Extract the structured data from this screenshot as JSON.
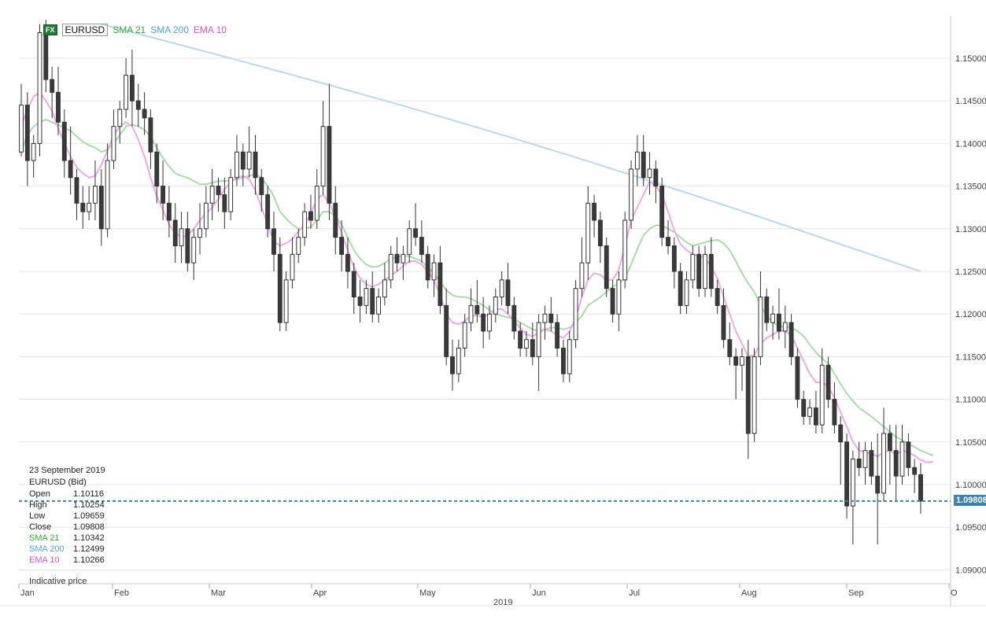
{
  "chart_data": {
    "type": "candlestick",
    "symbol": "EURUSD",
    "badge": "FX",
    "indicators": [
      {
        "name": "SMA 21",
        "color": "#3aa63a",
        "line_color": "#a8dca8"
      },
      {
        "name": "SMA 200",
        "color": "#4fa3d9",
        "line_color": "#b9d9ee"
      },
      {
        "name": "EMA 10",
        "color": "#e04fd0",
        "line_color": "#f0a8e8"
      }
    ],
    "y_ticks": [
      "1.15000",
      "1.14500",
      "1.14000",
      "1.13500",
      "1.13000",
      "1.12500",
      "1.12000",
      "1.11500",
      "1.11000",
      "1.10500",
      "1.10000",
      "1.09500",
      "1.09000"
    ],
    "ylim": [
      1.0865,
      1.1545
    ],
    "x_months": [
      "Jan",
      "Feb",
      "Mar",
      "Apr",
      "May",
      "Jun",
      "Jul",
      "Aug",
      "Sep",
      "O"
    ],
    "year_label": "2019",
    "last_price_label": "1.09808",
    "last_price": 1.09808,
    "candles": [
      [
        1.139,
        1.147,
        1.1385,
        1.1445
      ],
      [
        1.1445,
        1.146,
        1.135,
        1.138
      ],
      [
        1.138,
        1.141,
        1.136,
        1.14
      ],
      [
        1.14,
        1.154,
        1.1385,
        1.153
      ],
      [
        1.153,
        1.1545,
        1.146,
        1.1475
      ],
      [
        1.1475,
        1.149,
        1.143,
        1.146
      ],
      [
        1.146,
        1.149,
        1.141,
        1.1425
      ],
      [
        1.1425,
        1.144,
        1.136,
        1.138
      ],
      [
        1.138,
        1.142,
        1.134,
        1.136
      ],
      [
        1.136,
        1.137,
        1.131,
        1.133
      ],
      [
        1.133,
        1.135,
        1.13,
        1.132
      ],
      [
        1.132,
        1.135,
        1.131,
        1.133
      ],
      [
        1.133,
        1.138,
        1.131,
        1.135
      ],
      [
        1.135,
        1.137,
        1.128,
        1.13
      ],
      [
        1.13,
        1.14,
        1.129,
        1.138
      ],
      [
        1.138,
        1.144,
        1.137,
        1.142
      ],
      [
        1.142,
        1.145,
        1.14,
        1.144
      ],
      [
        1.144,
        1.15,
        1.143,
        1.148
      ],
      [
        1.148,
        1.151,
        1.142,
        1.145
      ],
      [
        1.145,
        1.147,
        1.142,
        1.144
      ],
      [
        1.144,
        1.146,
        1.141,
        1.143
      ],
      [
        1.143,
        1.144,
        1.137,
        1.139
      ],
      [
        1.139,
        1.14,
        1.133,
        1.135
      ],
      [
        1.135,
        1.138,
        1.131,
        1.133
      ],
      [
        1.133,
        1.135,
        1.129,
        1.131
      ],
      [
        1.131,
        1.133,
        1.126,
        1.128
      ],
      [
        1.128,
        1.132,
        1.126,
        1.13
      ],
      [
        1.13,
        1.132,
        1.125,
        1.126
      ],
      [
        1.126,
        1.13,
        1.124,
        1.129
      ],
      [
        1.129,
        1.133,
        1.127,
        1.13
      ],
      [
        1.13,
        1.135,
        1.129,
        1.133
      ],
      [
        1.133,
        1.137,
        1.131,
        1.135
      ],
      [
        1.135,
        1.136,
        1.132,
        1.134
      ],
      [
        1.134,
        1.136,
        1.13,
        1.132
      ],
      [
        1.132,
        1.137,
        1.131,
        1.136
      ],
      [
        1.136,
        1.141,
        1.135,
        1.139
      ],
      [
        1.139,
        1.14,
        1.135,
        1.137
      ],
      [
        1.137,
        1.142,
        1.136,
        1.139
      ],
      [
        1.139,
        1.141,
        1.134,
        1.136
      ],
      [
        1.136,
        1.137,
        1.132,
        1.134
      ],
      [
        1.134,
        1.135,
        1.129,
        1.13
      ],
      [
        1.13,
        1.132,
        1.125,
        1.127
      ],
      [
        1.127,
        1.129,
        1.118,
        1.119
      ],
      [
        1.119,
        1.125,
        1.118,
        1.124
      ],
      [
        1.124,
        1.129,
        1.123,
        1.127
      ],
      [
        1.127,
        1.13,
        1.126,
        1.129
      ],
      [
        1.129,
        1.133,
        1.128,
        1.132
      ],
      [
        1.132,
        1.134,
        1.13,
        1.131
      ],
      [
        1.131,
        1.137,
        1.13,
        1.135
      ],
      [
        1.135,
        1.145,
        1.134,
        1.142
      ],
      [
        1.142,
        1.147,
        1.131,
        1.133
      ],
      [
        1.133,
        1.135,
        1.127,
        1.129
      ],
      [
        1.129,
        1.131,
        1.125,
        1.127
      ],
      [
        1.127,
        1.129,
        1.123,
        1.125
      ],
      [
        1.125,
        1.126,
        1.12,
        1.122
      ],
      [
        1.122,
        1.124,
        1.119,
        1.121
      ],
      [
        1.121,
        1.124,
        1.12,
        1.123
      ],
      [
        1.123,
        1.125,
        1.119,
        1.12
      ],
      [
        1.12,
        1.123,
        1.119,
        1.122
      ],
      [
        1.122,
        1.126,
        1.121,
        1.124
      ],
      [
        1.124,
        1.128,
        1.123,
        1.127
      ],
      [
        1.127,
        1.129,
        1.125,
        1.126
      ],
      [
        1.126,
        1.128,
        1.124,
        1.127
      ],
      [
        1.127,
        1.131,
        1.126,
        1.13
      ],
      [
        1.13,
        1.133,
        1.128,
        1.129
      ],
      [
        1.129,
        1.131,
        1.126,
        1.127
      ],
      [
        1.127,
        1.128,
        1.123,
        1.124
      ],
      [
        1.124,
        1.127,
        1.122,
        1.126
      ],
      [
        1.126,
        1.128,
        1.12,
        1.121
      ],
      [
        1.121,
        1.123,
        1.114,
        1.115
      ],
      [
        1.115,
        1.117,
        1.111,
        1.113
      ],
      [
        1.113,
        1.117,
        1.112,
        1.116
      ],
      [
        1.116,
        1.12,
        1.115,
        1.119
      ],
      [
        1.119,
        1.123,
        1.118,
        1.121
      ],
      [
        1.121,
        1.124,
        1.119,
        1.12
      ],
      [
        1.12,
        1.122,
        1.116,
        1.118
      ],
      [
        1.118,
        1.121,
        1.117,
        1.12
      ],
      [
        1.12,
        1.123,
        1.119,
        1.122
      ],
      [
        1.122,
        1.125,
        1.121,
        1.124
      ],
      [
        1.124,
        1.126,
        1.12,
        1.121
      ],
      [
        1.121,
        1.122,
        1.117,
        1.118
      ],
      [
        1.118,
        1.119,
        1.115,
        1.116
      ],
      [
        1.116,
        1.118,
        1.115,
        1.117
      ],
      [
        1.117,
        1.119,
        1.114,
        1.115
      ],
      [
        1.115,
        1.12,
        1.111,
        1.119
      ],
      [
        1.119,
        1.121,
        1.117,
        1.12
      ],
      [
        1.12,
        1.122,
        1.118,
        1.119
      ],
      [
        1.119,
        1.12,
        1.115,
        1.116
      ],
      [
        1.116,
        1.117,
        1.112,
        1.113
      ],
      [
        1.113,
        1.118,
        1.112,
        1.117
      ],
      [
        1.117,
        1.124,
        1.116,
        1.123
      ],
      [
        1.123,
        1.129,
        1.122,
        1.126
      ],
      [
        1.126,
        1.135,
        1.124,
        1.133
      ],
      [
        1.133,
        1.134,
        1.129,
        1.131
      ],
      [
        1.131,
        1.132,
        1.126,
        1.128
      ],
      [
        1.128,
        1.129,
        1.122,
        1.123
      ],
      [
        1.123,
        1.124,
        1.119,
        1.12
      ],
      [
        1.12,
        1.125,
        1.118,
        1.124
      ],
      [
        1.124,
        1.132,
        1.123,
        1.131
      ],
      [
        1.131,
        1.138,
        1.13,
        1.137
      ],
      [
        1.137,
        1.141,
        1.135,
        1.139
      ],
      [
        1.139,
        1.141,
        1.135,
        1.136
      ],
      [
        1.136,
        1.139,
        1.134,
        1.137
      ],
      [
        1.137,
        1.138,
        1.133,
        1.135
      ],
      [
        1.135,
        1.136,
        1.128,
        1.129
      ],
      [
        1.129,
        1.131,
        1.127,
        1.128
      ],
      [
        1.128,
        1.129,
        1.123,
        1.125
      ],
      [
        1.125,
        1.126,
        1.12,
        1.121
      ],
      [
        1.121,
        1.125,
        1.12,
        1.124
      ],
      [
        1.124,
        1.128,
        1.123,
        1.127
      ],
      [
        1.127,
        1.128,
        1.122,
        1.123
      ],
      [
        1.123,
        1.128,
        1.122,
        1.127
      ],
      [
        1.127,
        1.129,
        1.122,
        1.123
      ],
      [
        1.123,
        1.124,
        1.12,
        1.121
      ],
      [
        1.121,
        1.123,
        1.116,
        1.117
      ],
      [
        1.117,
        1.119,
        1.114,
        1.115
      ],
      [
        1.115,
        1.116,
        1.11,
        1.114
      ],
      [
        1.114,
        1.116,
        1.111,
        1.115
      ],
      [
        1.115,
        1.117,
        1.103,
        1.106
      ],
      [
        1.106,
        1.116,
        1.105,
        1.115
      ],
      [
        1.115,
        1.125,
        1.114,
        1.122
      ],
      [
        1.122,
        1.123,
        1.118,
        1.119
      ],
      [
        1.119,
        1.121,
        1.117,
        1.12
      ],
      [
        1.12,
        1.123,
        1.117,
        1.118
      ],
      [
        1.118,
        1.121,
        1.116,
        1.119
      ],
      [
        1.119,
        1.12,
        1.114,
        1.115
      ],
      [
        1.115,
        1.116,
        1.109,
        1.11
      ],
      [
        1.11,
        1.111,
        1.107,
        1.108
      ],
      [
        1.108,
        1.11,
        1.107,
        1.109
      ],
      [
        1.109,
        1.111,
        1.106,
        1.107
      ],
      [
        1.107,
        1.116,
        1.106,
        1.114
      ],
      [
        1.114,
        1.115,
        1.109,
        1.11
      ],
      [
        1.11,
        1.112,
        1.106,
        1.107
      ],
      [
        1.107,
        1.108,
        1.1,
        1.105
      ],
      [
        1.105,
        1.106,
        1.096,
        1.0975
      ],
      [
        1.0975,
        1.104,
        1.093,
        1.103
      ],
      [
        1.103,
        1.105,
        1.101,
        1.102
      ],
      [
        1.102,
        1.105,
        1.1,
        1.104
      ],
      [
        1.104,
        1.105,
        1.1,
        1.101
      ],
      [
        1.101,
        1.106,
        1.093,
        1.099
      ],
      [
        1.099,
        1.109,
        1.098,
        1.106
      ],
      [
        1.106,
        1.107,
        1.1,
        1.104
      ],
      [
        1.104,
        1.107,
        1.098,
        1.101
      ],
      [
        1.101,
        1.107,
        1.1,
        1.105
      ],
      [
        1.105,
        1.106,
        1.101,
        1.102
      ],
      [
        1.102,
        1.103,
        1.099,
        1.1012
      ],
      [
        1.10116,
        1.10254,
        1.09659,
        1.09808
      ]
    ],
    "sma21": [
      1.139,
      1.141,
      1.142,
      1.1425,
      1.1428,
      1.1425,
      1.1422,
      1.1418,
      1.1415,
      1.1408,
      1.1402,
      1.1398,
      1.1395,
      1.139,
      1.1393,
      1.14,
      1.141,
      1.142,
      1.1422,
      1.142,
      1.1416,
      1.1408,
      1.1395,
      1.1383,
      1.1373,
      1.1365,
      1.1362,
      1.136,
      1.1356,
      1.1352,
      1.1352,
      1.1354,
      1.1356,
      1.1356,
      1.1356,
      1.1358,
      1.136,
      1.1362,
      1.1364,
      1.136,
      1.135,
      1.1338,
      1.132,
      1.1312,
      1.1305,
      1.13,
      1.13,
      1.1302,
      1.131,
      1.132,
      1.132,
      1.1315,
      1.1305,
      1.129,
      1.1275,
      1.1265,
      1.1258,
      1.1255,
      1.1256,
      1.126,
      1.1265,
      1.1267,
      1.1268,
      1.1268,
      1.1265,
      1.1262,
      1.1255,
      1.1248,
      1.1238,
      1.1228,
      1.1222,
      1.122,
      1.122,
      1.1218,
      1.1214,
      1.121,
      1.1205,
      1.12,
      1.1198,
      1.1196,
      1.1194,
      1.119,
      1.1186,
      1.1182,
      1.118,
      1.1182,
      1.1184,
      1.1184,
      1.1182,
      1.1184,
      1.119,
      1.1198,
      1.121,
      1.1215,
      1.122,
      1.1226,
      1.1232,
      1.1236,
      1.1242,
      1.1258,
      1.1276,
      1.1292,
      1.13,
      1.1304,
      1.1304,
      1.13,
      1.1296,
      1.129,
      1.1284,
      1.128,
      1.1282,
      1.1284,
      1.1286,
      1.1287,
      1.1283,
      1.1275,
      1.1262,
      1.1248,
      1.1236,
      1.1226,
      1.121,
      1.1198,
      1.119,
      1.1186,
      1.1185,
      1.1184,
      1.118,
      1.1174,
      1.1164,
      1.1155,
      1.1148,
      1.1142,
      1.113,
      1.1118,
      1.1107,
      1.1098,
      1.109,
      1.1085,
      1.108,
      1.1074,
      1.1068,
      1.1062,
      1.1056,
      1.1052,
      1.1048,
      1.1044,
      1.104,
      1.1037,
      1.1034
    ],
    "ema10": [
      1.142,
      1.144,
      1.1455,
      1.146,
      1.145,
      1.1438,
      1.1418,
      1.14,
      1.1385,
      1.1372,
      1.1365,
      1.136,
      1.1362,
      1.1375,
      1.1392,
      1.141,
      1.142,
      1.1425,
      1.142,
      1.1405,
      1.1385,
      1.136,
      1.1338,
      1.1322,
      1.1305,
      1.1295,
      1.129,
      1.1292,
      1.13,
      1.131,
      1.1318,
      1.1325,
      1.1335,
      1.1346,
      1.1355,
      1.136,
      1.1362,
      1.1358,
      1.1345,
      1.1325,
      1.1305,
      1.1285,
      1.128,
      1.1283,
      1.1288,
      1.1297,
      1.1305,
      1.1318,
      1.1335,
      1.134,
      1.133,
      1.1315,
      1.1295,
      1.1275,
      1.1255,
      1.1242,
      1.1235,
      1.1232,
      1.1235,
      1.124,
      1.1245,
      1.125,
      1.1256,
      1.1262,
      1.1262,
      1.1258,
      1.125,
      1.124,
      1.1222,
      1.12,
      1.119,
      1.1188,
      1.1192,
      1.1198,
      1.1198,
      1.1197,
      1.12,
      1.1205,
      1.1206,
      1.12,
      1.1192,
      1.1184,
      1.1176,
      1.1174,
      1.1178,
      1.1182,
      1.118,
      1.1175,
      1.1172,
      1.118,
      1.1195,
      1.122,
      1.124,
      1.1248,
      1.1246,
      1.124,
      1.124,
      1.1252,
      1.128,
      1.131,
      1.1325,
      1.134,
      1.1355,
      1.135,
      1.134,
      1.132,
      1.1298,
      1.1282,
      1.1275,
      1.127,
      1.1268,
      1.1266,
      1.1255,
      1.1242,
      1.122,
      1.12,
      1.118,
      1.1165,
      1.115,
      1.1152,
      1.1165,
      1.1172,
      1.1176,
      1.118,
      1.118,
      1.1175,
      1.116,
      1.1145,
      1.113,
      1.112,
      1.112,
      1.1115,
      1.1102,
      1.1085,
      1.1068,
      1.105,
      1.104,
      1.1038,
      1.1036,
      1.1033,
      1.1038,
      1.104,
      1.1035,
      1.104,
      1.1038,
      1.1034,
      1.1029,
      1.1026,
      1.1027
    ],
    "sma200": {
      "start": 1.154,
      "end": 1.12499,
      "start_index": 13
    },
    "ohlc_info": {
      "date": "23 September 2019",
      "instrument": "EURUSD (Bid)",
      "rows": [
        {
          "label": "Open",
          "value": "1.10116",
          "color": "#222"
        },
        {
          "label": "High",
          "value": "1.10254",
          "color": "#222"
        },
        {
          "label": "Low",
          "value": "1.09659",
          "color": "#222"
        },
        {
          "label": "Close",
          "value": "1.09808",
          "color": "#222"
        },
        {
          "label": "SMA 21",
          "value": "1.10342",
          "color": "#3aa63a"
        },
        {
          "label": "SMA 200",
          "value": "1.12499",
          "color": "#4fa3d9"
        },
        {
          "label": "EMA 10",
          "value": "1.10266",
          "color": "#e04fd0"
        }
      ],
      "note": "Indicative price"
    }
  }
}
